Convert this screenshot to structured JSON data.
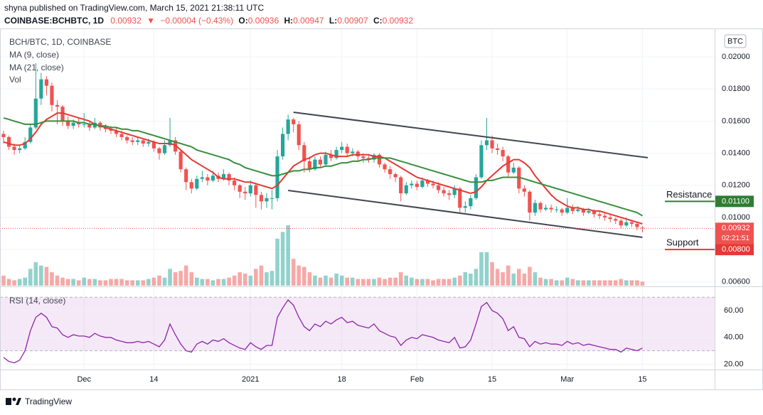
{
  "header": {
    "published": "shyna published on TradingView.com, March 15, 2021 21:38:11 UTC",
    "symbol": "COINBASE:BCHBTC, 1D",
    "last": "0.00932",
    "arrow": "▼",
    "change": "−0.00004 (−0.43%)",
    "ohlc": [
      {
        "label": "O:",
        "value": "0.00936"
      },
      {
        "label": "H:",
        "value": "0.00947"
      },
      {
        "label": "L:",
        "value": "0.00907"
      },
      {
        "label": "C:",
        "value": "0.00932"
      }
    ],
    "currency_button": "BTC",
    "brand": "TradingView"
  },
  "chart_data": {
    "type": "candlestick",
    "title": "BCH/BTC, 1D, COINBASE",
    "up_color": "#26a69a",
    "down_color": "#ef5350",
    "x": [
      "2020-11-16",
      "2020-11-17",
      "2020-11-18",
      "2020-11-19",
      "2020-11-20",
      "2020-11-21",
      "2020-11-22",
      "2020-11-23",
      "2020-11-24",
      "2020-11-25",
      "2020-11-26",
      "2020-11-27",
      "2020-11-28",
      "2020-11-29",
      "2020-11-30",
      "2020-12-01",
      "2020-12-02",
      "2020-12-03",
      "2020-12-04",
      "2020-12-05",
      "2020-12-06",
      "2020-12-07",
      "2020-12-08",
      "2020-12-09",
      "2020-12-10",
      "2020-12-11",
      "2020-12-12",
      "2020-12-13",
      "2020-12-14",
      "2020-12-15",
      "2020-12-16",
      "2020-12-17",
      "2020-12-18",
      "2020-12-19",
      "2020-12-20",
      "2020-12-21",
      "2020-12-22",
      "2020-12-23",
      "2020-12-24",
      "2020-12-25",
      "2020-12-26",
      "2020-12-27",
      "2020-12-28",
      "2020-12-29",
      "2020-12-30",
      "2020-12-31",
      "2021-01-01",
      "2021-01-02",
      "2021-01-03",
      "2021-01-04",
      "2021-01-05",
      "2021-01-06",
      "2021-01-07",
      "2021-01-08",
      "2021-01-09",
      "2021-01-10",
      "2021-01-11",
      "2021-01-12",
      "2021-01-13",
      "2021-01-14",
      "2021-01-15",
      "2021-01-16",
      "2021-01-17",
      "2021-01-18",
      "2021-01-19",
      "2021-01-20",
      "2021-01-21",
      "2021-01-22",
      "2021-01-23",
      "2021-01-24",
      "2021-01-25",
      "2021-01-26",
      "2021-01-27",
      "2021-01-28",
      "2021-01-29",
      "2021-01-30",
      "2021-01-31",
      "2021-02-01",
      "2021-02-02",
      "2021-02-03",
      "2021-02-04",
      "2021-02-05",
      "2021-02-06",
      "2021-02-07",
      "2021-02-08",
      "2021-02-09",
      "2021-02-10",
      "2021-02-11",
      "2021-02-12",
      "2021-02-13",
      "2021-02-14",
      "2021-02-15",
      "2021-02-16",
      "2021-02-17",
      "2021-02-18",
      "2021-02-19",
      "2021-02-20",
      "2021-02-21",
      "2021-02-22",
      "2021-02-23",
      "2021-02-24",
      "2021-02-25",
      "2021-02-26",
      "2021-02-27",
      "2021-02-28",
      "2021-03-01",
      "2021-03-02",
      "2021-03-03",
      "2021-03-04",
      "2021-03-05",
      "2021-03-06",
      "2021-03-07",
      "2021-03-08",
      "2021-03-09",
      "2021-03-10",
      "2021-03-11",
      "2021-03-12",
      "2021-03-13",
      "2021-03-14",
      "2021-03-15"
    ],
    "open": [
      0.0152,
      0.015,
      0.0144,
      0.0142,
      0.0143,
      0.0147,
      0.0156,
      0.0174,
      0.0186,
      0.0182,
      0.017,
      0.0169,
      0.016,
      0.0157,
      0.0159,
      0.0158,
      0.0158,
      0.0156,
      0.0159,
      0.0156,
      0.0155,
      0.0154,
      0.0152,
      0.015,
      0.0148,
      0.0147,
      0.0148,
      0.0146,
      0.0147,
      0.0143,
      0.014,
      0.0145,
      0.0148,
      0.0141,
      0.013,
      0.0122,
      0.0118,
      0.0124,
      0.0125,
      0.0123,
      0.0126,
      0.0124,
      0.0127,
      0.0123,
      0.012,
      0.0116,
      0.0115,
      0.012,
      0.0114,
      0.011,
      0.0112,
      0.0112,
      0.0138,
      0.0152,
      0.0161,
      0.0158,
      0.0145,
      0.0135,
      0.013,
      0.0136,
      0.0133,
      0.0139,
      0.0137,
      0.0142,
      0.0144,
      0.014,
      0.0141,
      0.0138,
      0.0137,
      0.0136,
      0.0139,
      0.0133,
      0.013,
      0.0127,
      0.0125,
      0.0115,
      0.012,
      0.0121,
      0.0119,
      0.0123,
      0.0121,
      0.012,
      0.0117,
      0.0115,
      0.0114,
      0.0118,
      0.0106,
      0.0107,
      0.0112,
      0.0125,
      0.0145,
      0.0148,
      0.0143,
      0.0142,
      0.0138,
      0.0128,
      0.0131,
      0.0118,
      0.0116,
      0.0103,
      0.0109,
      0.0105,
      0.0106,
      0.0105,
      0.0105,
      0.0103,
      0.0106,
      0.0104,
      0.0105,
      0.0103,
      0.0104,
      0.0102,
      0.0101,
      0.01,
      0.0099,
      0.0098,
      0.0095,
      0.0097,
      0.0096,
      0.00936
    ],
    "high": [
      0.0154,
      0.0151,
      0.0146,
      0.0145,
      0.015,
      0.0158,
      0.0196,
      0.019,
      0.0188,
      0.0184,
      0.0173,
      0.017,
      0.0163,
      0.0161,
      0.0162,
      0.0165,
      0.016,
      0.0162,
      0.016,
      0.0158,
      0.0157,
      0.0156,
      0.0154,
      0.0151,
      0.015,
      0.015,
      0.0149,
      0.0149,
      0.0148,
      0.0144,
      0.0148,
      0.0162,
      0.015,
      0.0142,
      0.0131,
      0.0124,
      0.0126,
      0.0129,
      0.0127,
      0.0129,
      0.0128,
      0.013,
      0.0128,
      0.0125,
      0.0121,
      0.0119,
      0.0123,
      0.0121,
      0.0116,
      0.0115,
      0.0117,
      0.0142,
      0.0156,
      0.0164,
      0.0162,
      0.016,
      0.0147,
      0.0138,
      0.0138,
      0.0138,
      0.0141,
      0.0142,
      0.0144,
      0.0147,
      0.0146,
      0.0143,
      0.0142,
      0.014,
      0.0139,
      0.014,
      0.014,
      0.0134,
      0.0132,
      0.0128,
      0.0126,
      0.0122,
      0.0123,
      0.0123,
      0.0125,
      0.0124,
      0.0123,
      0.0122,
      0.0119,
      0.0117,
      0.012,
      0.0119,
      0.011,
      0.0114,
      0.0127,
      0.0148,
      0.0162,
      0.0151,
      0.0146,
      0.0144,
      0.0139,
      0.0134,
      0.0132,
      0.012,
      0.0117,
      0.0111,
      0.011,
      0.0108,
      0.0108,
      0.0107,
      0.0106,
      0.0112,
      0.0108,
      0.0107,
      0.0106,
      0.0106,
      0.0105,
      0.0104,
      0.0103,
      0.0102,
      0.01,
      0.0099,
      0.01,
      0.0098,
      0.0097,
      0.00947
    ],
    "low": [
      0.0146,
      0.0142,
      0.0139,
      0.014,
      0.0142,
      0.0146,
      0.0155,
      0.017,
      0.0176,
      0.0166,
      0.0158,
      0.0157,
      0.0155,
      0.0155,
      0.0156,
      0.0156,
      0.0154,
      0.0155,
      0.0154,
      0.0153,
      0.0152,
      0.015,
      0.0148,
      0.0146,
      0.0145,
      0.0145,
      0.0144,
      0.0144,
      0.0141,
      0.0136,
      0.0139,
      0.0144,
      0.0139,
      0.0128,
      0.0117,
      0.0115,
      0.0117,
      0.0122,
      0.012,
      0.0122,
      0.0122,
      0.0123,
      0.012,
      0.0117,
      0.0112,
      0.0111,
      0.0113,
      0.0106,
      0.0105,
      0.0106,
      0.0105,
      0.011,
      0.0136,
      0.0148,
      0.0153,
      0.0142,
      0.0128,
      0.0128,
      0.0129,
      0.0131,
      0.0132,
      0.0135,
      0.0136,
      0.014,
      0.0138,
      0.0138,
      0.0135,
      0.0134,
      0.0134,
      0.0134,
      0.0131,
      0.0128,
      0.0124,
      0.0122,
      0.011,
      0.0114,
      0.0118,
      0.0117,
      0.0118,
      0.0119,
      0.0118,
      0.0115,
      0.0113,
      0.0111,
      0.0112,
      0.0103,
      0.0103,
      0.0105,
      0.0111,
      0.0124,
      0.0142,
      0.014,
      0.0139,
      0.0135,
      0.0125,
      0.0127,
      0.0115,
      0.0113,
      0.0098,
      0.0101,
      0.0103,
      0.0104,
      0.0103,
      0.0103,
      0.0101,
      0.0102,
      0.0102,
      0.0103,
      0.0101,
      0.0102,
      0.01,
      0.0099,
      0.0098,
      0.0097,
      0.0096,
      0.0093,
      0.0094,
      0.0094,
      0.0092,
      0.00907
    ],
    "close": [
      0.015,
      0.0144,
      0.0142,
      0.0143,
      0.0147,
      0.0156,
      0.0174,
      0.0186,
      0.0182,
      0.017,
      0.0169,
      0.016,
      0.0157,
      0.0159,
      0.0158,
      0.0158,
      0.0156,
      0.0159,
      0.0156,
      0.0155,
      0.0154,
      0.0152,
      0.015,
      0.0148,
      0.0147,
      0.0148,
      0.0146,
      0.0147,
      0.0143,
      0.014,
      0.0145,
      0.0148,
      0.0141,
      0.013,
      0.0122,
      0.0118,
      0.0124,
      0.0125,
      0.0123,
      0.0126,
      0.0124,
      0.0127,
      0.0123,
      0.012,
      0.0116,
      0.0115,
      0.012,
      0.0114,
      0.011,
      0.0112,
      0.0112,
      0.0138,
      0.0152,
      0.0161,
      0.0158,
      0.0145,
      0.0135,
      0.013,
      0.0136,
      0.0133,
      0.0139,
      0.0137,
      0.0142,
      0.0144,
      0.014,
      0.0141,
      0.0138,
      0.0137,
      0.0136,
      0.0139,
      0.0133,
      0.013,
      0.0127,
      0.0125,
      0.0115,
      0.012,
      0.0121,
      0.0119,
      0.0123,
      0.0121,
      0.012,
      0.0117,
      0.0115,
      0.0114,
      0.0118,
      0.0106,
      0.0107,
      0.0112,
      0.0125,
      0.0145,
      0.0148,
      0.0143,
      0.0142,
      0.0138,
      0.0128,
      0.0131,
      0.0118,
      0.0116,
      0.0103,
      0.0109,
      0.0105,
      0.0106,
      0.0105,
      0.0105,
      0.0103,
      0.0106,
      0.0104,
      0.0105,
      0.0103,
      0.0104,
      0.0102,
      0.0101,
      0.01,
      0.0099,
      0.0098,
      0.0095,
      0.0097,
      0.0096,
      0.0094,
      0.00932
    ],
    "series": [
      {
        "name": "MA (9, close)",
        "color": "#e53935",
        "values": [
          0.0147,
          0.0146,
          0.0145,
          0.0145,
          0.0146,
          0.0149,
          0.0153,
          0.0158,
          0.0161,
          0.0163,
          0.0165,
          0.0165,
          0.0164,
          0.0163,
          0.0162,
          0.0161,
          0.016,
          0.0158,
          0.0157,
          0.0156,
          0.0155,
          0.0154,
          0.0153,
          0.0152,
          0.0151,
          0.015,
          0.0149,
          0.0148,
          0.0147,
          0.0146,
          0.0146,
          0.0146,
          0.0145,
          0.0142,
          0.0139,
          0.0136,
          0.0134,
          0.0132,
          0.013,
          0.0128,
          0.0125,
          0.0124,
          0.0124,
          0.0124,
          0.0123,
          0.0122,
          0.0122,
          0.0121,
          0.012,
          0.0119,
          0.0118,
          0.012,
          0.0124,
          0.0128,
          0.0132,
          0.0134,
          0.0136,
          0.0137,
          0.0139,
          0.014,
          0.014,
          0.0139,
          0.0138,
          0.0138,
          0.0138,
          0.0139,
          0.0139,
          0.0139,
          0.0139,
          0.0138,
          0.0138,
          0.0137,
          0.0135,
          0.0133,
          0.0131,
          0.0129,
          0.0127,
          0.0125,
          0.0124,
          0.0123,
          0.0122,
          0.0121,
          0.012,
          0.0119,
          0.0118,
          0.0117,
          0.0116,
          0.0115,
          0.0116,
          0.0119,
          0.0123,
          0.0126,
          0.0129,
          0.0132,
          0.0134,
          0.0136,
          0.0136,
          0.0134,
          0.0131,
          0.0126,
          0.0122,
          0.0118,
          0.0114,
          0.0111,
          0.0109,
          0.0107,
          0.0106,
          0.0106,
          0.0105,
          0.0105,
          0.0104,
          0.0104,
          0.0103,
          0.0102,
          0.0101,
          0.01,
          0.0099,
          0.0098,
          0.0097,
          0.0096
        ]
      },
      {
        "name": "MA (21, close)",
        "color": "#388e3c",
        "values": [
          0.0162,
          0.0161,
          0.016,
          0.0159,
          0.0158,
          0.0158,
          0.0158,
          0.0159,
          0.016,
          0.016,
          0.016,
          0.016,
          0.016,
          0.016,
          0.0159,
          0.0159,
          0.0158,
          0.0158,
          0.0157,
          0.0157,
          0.0156,
          0.0156,
          0.0155,
          0.0155,
          0.0154,
          0.0154,
          0.0153,
          0.0152,
          0.0151,
          0.015,
          0.0149,
          0.0148,
          0.0147,
          0.0146,
          0.0145,
          0.0144,
          0.0142,
          0.0141,
          0.014,
          0.0139,
          0.0138,
          0.0137,
          0.0136,
          0.0134,
          0.0133,
          0.0131,
          0.013,
          0.0129,
          0.0128,
          0.0127,
          0.0126,
          0.0126,
          0.0127,
          0.0128,
          0.0129,
          0.0129,
          0.013,
          0.013,
          0.0131,
          0.0131,
          0.0132,
          0.0132,
          0.0133,
          0.0134,
          0.0134,
          0.0135,
          0.0135,
          0.0136,
          0.0136,
          0.0137,
          0.0137,
          0.0137,
          0.0137,
          0.0136,
          0.0135,
          0.0134,
          0.0133,
          0.0132,
          0.0131,
          0.013,
          0.0129,
          0.0128,
          0.0127,
          0.0126,
          0.0125,
          0.0124,
          0.0123,
          0.0122,
          0.0122,
          0.0122,
          0.0123,
          0.0123,
          0.0124,
          0.0125,
          0.0125,
          0.0125,
          0.0125,
          0.0124,
          0.0123,
          0.0122,
          0.0121,
          0.012,
          0.0119,
          0.0118,
          0.0117,
          0.0116,
          0.0115,
          0.0114,
          0.0113,
          0.0112,
          0.0111,
          0.011,
          0.0109,
          0.0108,
          0.0107,
          0.0106,
          0.0105,
          0.0104,
          0.0103,
          0.0101
        ]
      }
    ],
    "volume": {
      "name": "Vol",
      "values": [
        15,
        10,
        8,
        10,
        12,
        25,
        35,
        30,
        28,
        20,
        15,
        12,
        10,
        10,
        8,
        12,
        10,
        10,
        8,
        8,
        10,
        10,
        10,
        8,
        8,
        8,
        8,
        10,
        12,
        15,
        12,
        25,
        20,
        22,
        30,
        20,
        12,
        10,
        10,
        8,
        10,
        10,
        12,
        15,
        20,
        18,
        15,
        25,
        30,
        20,
        22,
        70,
        80,
        90,
        40,
        30,
        28,
        20,
        15,
        12,
        15,
        12,
        18,
        15,
        12,
        12,
        10,
        10,
        10,
        10,
        12,
        10,
        12,
        12,
        20,
        15,
        12,
        10,
        10,
        10,
        8,
        10,
        10,
        10,
        12,
        15,
        20,
        18,
        25,
        50,
        50,
        35,
        25,
        20,
        30,
        18,
        25,
        18,
        28,
        20,
        12,
        10,
        10,
        8,
        8,
        12,
        10,
        8,
        8,
        8,
        8,
        8,
        8,
        8,
        8,
        10,
        8,
        8,
        8,
        6
      ]
    },
    "ylim": [
      0.00575,
      0.02177
    ],
    "yticks": [
      {
        "value": 0.006,
        "label": "0.00600"
      },
      {
        "value": 0.008,
        "label": "0.00800"
      },
      {
        "value": 0.01,
        "label": "0.01000"
      },
      {
        "value": 0.012,
        "label": "0.01200"
      },
      {
        "value": 0.014,
        "label": "0.01400"
      },
      {
        "value": 0.016,
        "label": "0.01600"
      },
      {
        "value": 0.018,
        "label": "0.01800"
      },
      {
        "value": 0.02,
        "label": "0.02000"
      }
    ],
    "xticks": [
      {
        "value": "2020-12-01",
        "label": "Dec"
      },
      {
        "value": "2020-12-14",
        "label": "14"
      },
      {
        "value": "2021-01-01",
        "label": "2021"
      },
      {
        "value": "2021-01-18",
        "label": "18"
      },
      {
        "value": "2021-02-01",
        "label": "Feb"
      },
      {
        "value": "2021-02-15",
        "label": "15"
      },
      {
        "value": "2021-03-01",
        "label": "Mar"
      },
      {
        "value": "2021-03-15",
        "label": "15"
      }
    ],
    "grid": true,
    "trendlines": [
      {
        "color": "#434651",
        "x": [
          "2021-01-09",
          "2021-03-16"
        ],
        "y": [
          0.01655,
          0.01372
        ]
      },
      {
        "color": "#434651",
        "x": [
          "2021-01-08",
          "2021-03-15"
        ],
        "y": [
          0.01168,
          0.00876
        ]
      }
    ],
    "annotations": [
      {
        "text": "Resistance",
        "value": 0.011,
        "value_label": "0.01100",
        "text_color": "#e53935",
        "line_color": "#2e7d32"
      },
      {
        "text": "Support",
        "value": 0.008,
        "value_label": "0.00800",
        "text_color": "#2e7d32",
        "line_color": "#e53935"
      }
    ],
    "last": {
      "value": 0.00932,
      "label": "0.00932",
      "countdown": "02:21:51"
    },
    "rsi": {
      "name": "RSI (14, close)",
      "color": "#8e24aa",
      "ylim": [
        16,
        77
      ],
      "bands": [
        30,
        70
      ],
      "yticks": [
        {
          "value": 20,
          "label": "20.00"
        },
        {
          "value": 40,
          "label": "40.00"
        },
        {
          "value": 60,
          "label": "60.00"
        }
      ],
      "values": [
        25,
        22,
        21,
        23,
        30,
        45,
        55,
        58,
        55,
        48,
        47,
        42,
        40,
        42,
        41,
        41,
        40,
        43,
        41,
        40,
        40,
        38,
        37,
        36,
        36,
        37,
        36,
        37,
        35,
        33,
        38,
        50,
        42,
        35,
        30,
        29,
        35,
        37,
        35,
        38,
        37,
        39,
        36,
        34,
        32,
        31,
        36,
        33,
        31,
        34,
        34,
        55,
        62,
        68,
        64,
        55,
        48,
        45,
        50,
        48,
        52,
        50,
        53,
        55,
        51,
        52,
        49,
        48,
        47,
        50,
        45,
        43,
        41,
        40,
        34,
        38,
        40,
        39,
        42,
        41,
        40,
        38,
        37,
        36,
        40,
        32,
        33,
        38,
        50,
        63,
        66,
        60,
        58,
        54,
        45,
        48,
        40,
        39,
        33,
        37,
        35,
        36,
        35,
        35,
        34,
        37,
        35,
        36,
        34,
        35,
        34,
        33,
        32,
        31,
        31,
        29,
        32,
        31,
        30,
        32
      ]
    }
  }
}
